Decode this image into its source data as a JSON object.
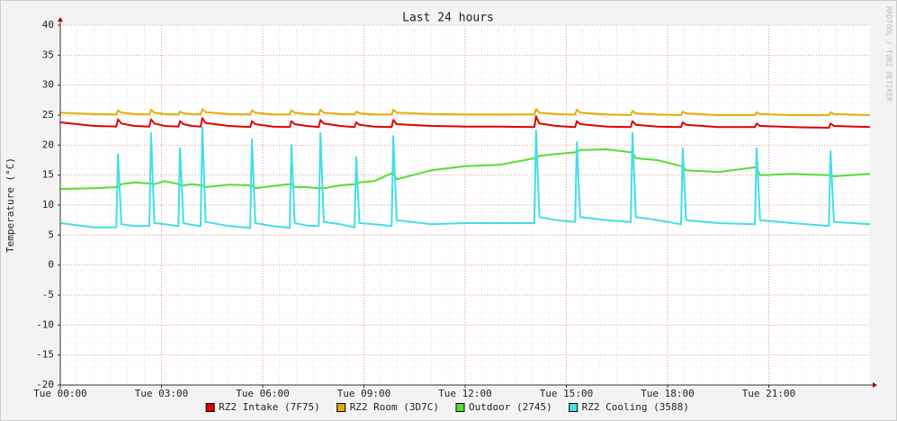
{
  "chart_data": {
    "type": "line",
    "title": "Last 24 hours",
    "y_label": "Temperature (°C)",
    "watermark": "RRDTOOL / TOBI OETIKER",
    "xlim": [
      0,
      24
    ],
    "xticks": [
      {
        "value": 0,
        "label": "Tue 00:00"
      },
      {
        "value": 3,
        "label": "Tue 03:00"
      },
      {
        "value": 6,
        "label": "Tue 06:00"
      },
      {
        "value": 9,
        "label": "Tue 09:00"
      },
      {
        "value": 12,
        "label": "Tue 12:00"
      },
      {
        "value": 15,
        "label": "Tue 15:00"
      },
      {
        "value": 18,
        "label": "Tue 18:00"
      },
      {
        "value": 21,
        "label": "Tue 21:00"
      }
    ],
    "ylim": [
      -20,
      40
    ],
    "yticks": [
      -20,
      -15,
      -10,
      -5,
      0,
      5,
      10,
      15,
      20,
      25,
      30,
      35,
      40
    ],
    "grid": true,
    "legend": "bottom",
    "x": [
      0,
      1.0,
      1.66,
      1.71,
      1.81,
      2.2,
      2.64,
      2.69,
      2.79,
      3.1,
      3.5,
      3.55,
      3.65,
      3.9,
      4.16,
      4.21,
      4.31,
      5.0,
      5.63,
      5.68,
      5.78,
      6.3,
      6.8,
      6.85,
      6.95,
      7.3,
      7.66,
      7.71,
      7.81,
      8.3,
      8.72,
      8.77,
      8.87,
      9.3,
      9.82,
      9.87,
      9.97,
      11,
      12,
      13,
      14.05,
      14.1,
      14.2,
      14.7,
      15.26,
      15.31,
      15.41,
      16.2,
      16.91,
      16.96,
      17.06,
      17.7,
      18.4,
      18.45,
      18.55,
      19.5,
      20.59,
      20.64,
      20.74,
      21.7,
      22.78,
      22.83,
      22.93,
      24
    ],
    "series": [
      {
        "name": "RZ2 Intake (7F75)",
        "color": "#e00000",
        "values": [
          23.8,
          23.2,
          23.1,
          24.3,
          23.6,
          23.2,
          23.1,
          24.3,
          23.6,
          23.2,
          23.1,
          24,
          23.5,
          23.2,
          23.1,
          24.5,
          23.7,
          23.2,
          23,
          24,
          23.5,
          23.1,
          23,
          24,
          23.5,
          23.2,
          23,
          24.2,
          23.6,
          23.2,
          23,
          23.8,
          23.4,
          23.1,
          23,
          24.2,
          23.5,
          23.2,
          23.1,
          23.1,
          23,
          24.8,
          23.6,
          23.2,
          23,
          24,
          23.5,
          23.1,
          23,
          24,
          23.4,
          23.1,
          23,
          23.8,
          23.4,
          23,
          23,
          23.6,
          23.2,
          23,
          22.9,
          23.6,
          23.2,
          23
        ]
      },
      {
        "name": "RZ2 Room (3D7C)",
        "color": "#e0b000",
        "values": [
          25.4,
          25.2,
          25.1,
          25.8,
          25.4,
          25.2,
          25.1,
          25.9,
          25.4,
          25.2,
          25.1,
          25.6,
          25.3,
          25.2,
          25.1,
          26,
          25.5,
          25.2,
          25.1,
          25.8,
          25.4,
          25.1,
          25.1,
          25.8,
          25.4,
          25.2,
          25.1,
          25.9,
          25.4,
          25.2,
          25.1,
          25.6,
          25.3,
          25.1,
          25.1,
          25.9,
          25.4,
          25.2,
          25.1,
          25.1,
          25.1,
          26,
          25.4,
          25.2,
          25.1,
          25.9,
          25.4,
          25.1,
          25,
          25.7,
          25.3,
          25.1,
          25,
          25.6,
          25.3,
          25,
          25,
          25.5,
          25.2,
          25,
          25,
          25.5,
          25.2,
          25
        ]
      },
      {
        "name": "Outdoor (2745)",
        "color": "#55dd33",
        "values": [
          12.7,
          12.8,
          13,
          13,
          13.5,
          13.8,
          13.6,
          13.6,
          13.5,
          14,
          13.5,
          13.3,
          13.3,
          13.5,
          13.3,
          13.3,
          13,
          13.4,
          13.3,
          13.3,
          12.8,
          13.2,
          13.5,
          13.5,
          13,
          13,
          12.8,
          12.8,
          12.8,
          13.3,
          13.5,
          13.5,
          13.8,
          14,
          15.3,
          15.3,
          14.3,
          15.8,
          16.5,
          16.7,
          17.8,
          17.8,
          18.2,
          18.5,
          18.8,
          18.8,
          19.2,
          19.3,
          18.8,
          18.8,
          17.8,
          17.5,
          16.5,
          16.5,
          15.8,
          15.5,
          16.3,
          16.3,
          15,
          15.2,
          15,
          15,
          14.8,
          15.2
        ]
      },
      {
        "name": "RZ2 Cooling (3588)",
        "color": "#44dde8",
        "values": [
          7,
          6.3,
          6.3,
          18.5,
          6.8,
          6.5,
          6.5,
          22,
          7,
          6.8,
          6.5,
          19.5,
          7,
          6.7,
          6.5,
          23,
          7.2,
          6.5,
          6.2,
          21,
          7,
          6.5,
          6.2,
          20,
          7,
          6.6,
          6.5,
          22,
          7.2,
          6.8,
          6.3,
          18,
          7,
          6.8,
          6.5,
          21.5,
          7.5,
          6.8,
          7,
          7,
          7,
          22.5,
          8,
          7.5,
          7.2,
          20.5,
          8,
          7.5,
          7.2,
          22,
          8,
          7.5,
          6.8,
          19.5,
          7.5,
          7,
          6.8,
          19.5,
          7.5,
          7,
          6.5,
          19,
          7.2,
          6.8
        ]
      }
    ]
  }
}
